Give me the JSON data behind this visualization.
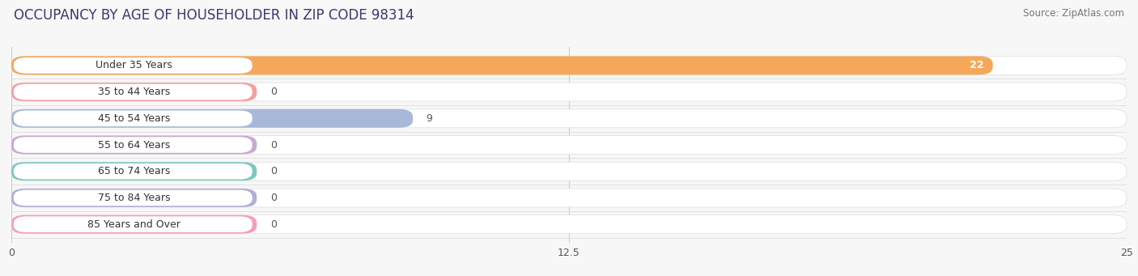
{
  "title": "OCCUPANCY BY AGE OF HOUSEHOLDER IN ZIP CODE 98314",
  "source": "Source: ZipAtlas.com",
  "categories": [
    "Under 35 Years",
    "35 to 44 Years",
    "45 to 54 Years",
    "55 to 64 Years",
    "65 to 74 Years",
    "75 to 84 Years",
    "85 Years and Over"
  ],
  "values": [
    22,
    0,
    9,
    0,
    0,
    0,
    0
  ],
  "bar_colors": [
    "#F5A85A",
    "#F4A0A0",
    "#A8B8D8",
    "#C9A8D4",
    "#7EC8C0",
    "#B0B0D8",
    "#F4A0B8"
  ],
  "xlim": [
    0,
    25
  ],
  "xticks": [
    0,
    12.5,
    25
  ],
  "bg_color": "#f7f7f7",
  "row_bg_color": "#ececec",
  "bar_row_white": "#ffffff",
  "title_fontsize": 12,
  "label_fontsize": 9,
  "value_fontsize": 9,
  "source_fontsize": 8.5,
  "title_color": "#3a3a6e",
  "label_color": "#333333",
  "value_color_on_bar": "#ffffff",
  "value_color_off_bar": "#555555"
}
